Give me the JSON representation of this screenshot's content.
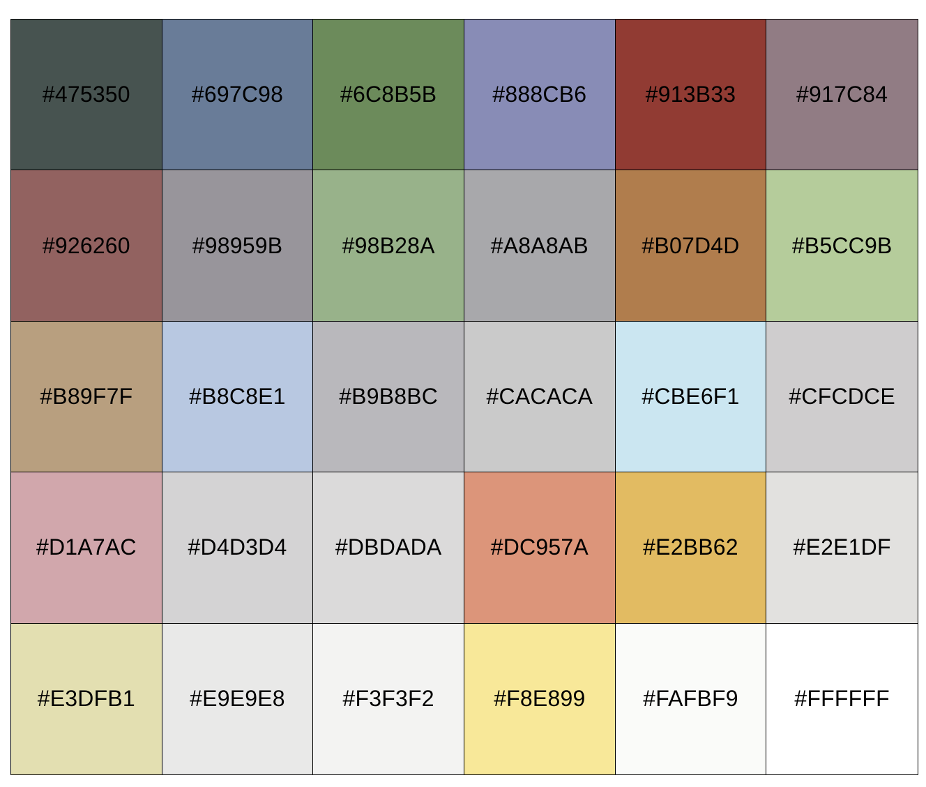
{
  "swatches": [
    {
      "hex": "#475350",
      "color": "#475350"
    },
    {
      "hex": "#697C98",
      "color": "#697C98"
    },
    {
      "hex": "#6C8B5B",
      "color": "#6C8B5B"
    },
    {
      "hex": "#888CB6",
      "color": "#888CB6"
    },
    {
      "hex": "#913B33",
      "color": "#913B33"
    },
    {
      "hex": "#917C84",
      "color": "#917C84"
    },
    {
      "hex": "#926260",
      "color": "#926260"
    },
    {
      "hex": "#98959B",
      "color": "#98959B"
    },
    {
      "hex": "#98B28A",
      "color": "#98B28A"
    },
    {
      "hex": "#A8A8AB",
      "color": "#A8A8AB"
    },
    {
      "hex": "#B07D4D",
      "color": "#B07D4D"
    },
    {
      "hex": "#B5CC9B",
      "color": "#B5CC9B"
    },
    {
      "hex": "#B89F7F",
      "color": "#B89F7F"
    },
    {
      "hex": "#B8C8E1",
      "color": "#B8C8E1"
    },
    {
      "hex": "#B9B8BC",
      "color": "#B9B8BC"
    },
    {
      "hex": "#CACACA",
      "color": "#CACACA"
    },
    {
      "hex": "#CBE6F1",
      "color": "#CBE6F1"
    },
    {
      "hex": "#CFCDCE",
      "color": "#CFCDCE"
    },
    {
      "hex": "#D1A7AC",
      "color": "#D1A7AC"
    },
    {
      "hex": "#D4D3D4",
      "color": "#D4D3D4"
    },
    {
      "hex": "#DBDADA",
      "color": "#DBDADA"
    },
    {
      "hex": "#DC957A",
      "color": "#DC957A"
    },
    {
      "hex": "#E2BB62",
      "color": "#E2BB62"
    },
    {
      "hex": "#E2E1DF",
      "color": "#E2E1DF"
    },
    {
      "hex": "#E3DFB1",
      "color": "#E3DFB1"
    },
    {
      "hex": "#E9E9E8",
      "color": "#E9E9E8"
    },
    {
      "hex": "#F3F3F2",
      "color": "#F3F3F2"
    },
    {
      "hex": "#F8E899",
      "color": "#F8E899"
    },
    {
      "hex": "#FAFBF9",
      "color": "#FAFBF9"
    },
    {
      "hex": "#FFFFFF",
      "color": "#FFFFFF"
    }
  ]
}
